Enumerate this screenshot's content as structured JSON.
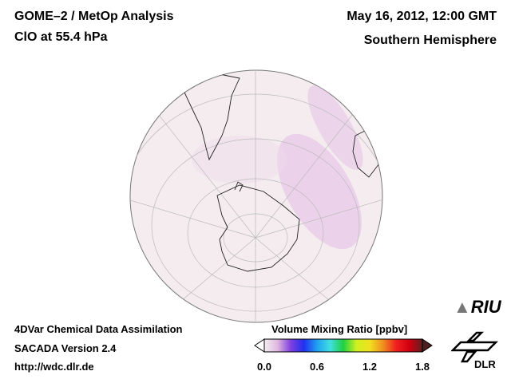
{
  "header": {
    "title": "GOME–2 / MetOp Analysis",
    "subtitle": "ClO at 55.4 hPa",
    "date": "May 16, 2012, 12:00 GMT",
    "region": "Southern Hemisphere"
  },
  "footer": {
    "line1": "4DVar Chemical Data Assimilation",
    "line2": "SACADA Version 2.4",
    "line3": "http://wdc.dlr.de"
  },
  "colorbar": {
    "title": "Volume Mixing Ratio [ppbv]",
    "ticks": [
      "0.0",
      "0.6",
      "1.2",
      "1.8"
    ],
    "range": [
      0.0,
      1.8
    ],
    "colors": [
      "#f4eef0",
      "#e0b8e0",
      "#8040e0",
      "#2030f0",
      "#20a0f0",
      "#40e0e0",
      "#20d040",
      "#d0f020",
      "#f0e020",
      "#f09020",
      "#f02020",
      "#d00010",
      "#602020"
    ]
  },
  "logos": {
    "riu": "RIU",
    "dlr": "DLR"
  }
}
